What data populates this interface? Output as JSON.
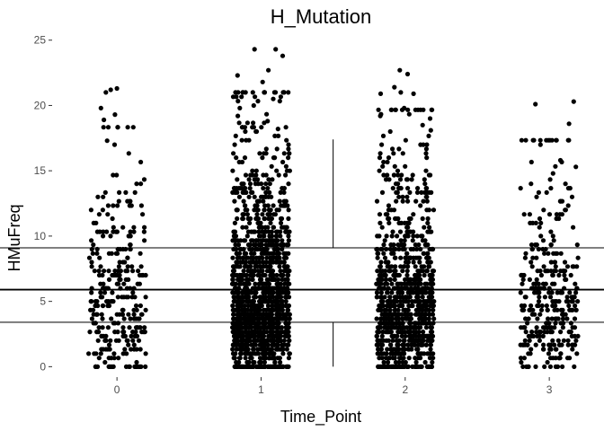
{
  "chart_data": {
    "type": "scatter",
    "subtype": "jitter-with-boxplot",
    "title": "H_Mutation",
    "xlabel": "Time_Point",
    "ylabel": "HMuFreq",
    "categories": [
      "0",
      "1",
      "2",
      "3"
    ],
    "x_ticks": [
      "0",
      "1",
      "2",
      "3"
    ],
    "y_ticks": [
      "0",
      "5",
      "10",
      "15",
      "20",
      "25"
    ],
    "ylim": [
      -0.8,
      25.6
    ],
    "xlim": [
      -0.45,
      3.18
    ],
    "jitter_width": 0.2,
    "grid": false,
    "legend": "none",
    "marker_color": "#000000",
    "boxplot": {
      "x_center": 1.5,
      "half_width": 2.8,
      "lower_whisker": 0.0,
      "q1": 3.4,
      "median": 5.9,
      "q3": 9.1,
      "upper_whisker": 17.4
    },
    "series": [
      {
        "category": "0",
        "approx_count": 300,
        "y_min": 0,
        "y_max": 21.3,
        "outliers_y": [
          19.8,
          19.3,
          21.0,
          21.2,
          21.3,
          18.9,
          17.3,
          17.0
        ]
      },
      {
        "category": "1",
        "approx_count": 1500,
        "y_min": 0,
        "y_max": 24.4,
        "outliers_y": [
          24.3,
          24.3,
          23.8,
          22.7,
          22.3,
          21.8,
          21.0,
          20.5,
          20.0,
          19.8,
          19.2,
          18.8,
          18.2
        ]
      },
      {
        "category": "2",
        "approx_count": 950,
        "y_min": 0,
        "y_max": 22.7,
        "outliers_y": [
          22.7,
          22.4,
          21.4,
          21.0,
          20.9,
          20.9,
          19.8,
          19.2,
          18.5,
          18.1
        ]
      },
      {
        "category": "3",
        "approx_count": 330,
        "y_min": 0,
        "y_max": 20.3,
        "outliers_y": [
          20.3,
          20.1,
          18.6,
          15.8,
          15.3,
          14.8
        ]
      }
    ]
  }
}
